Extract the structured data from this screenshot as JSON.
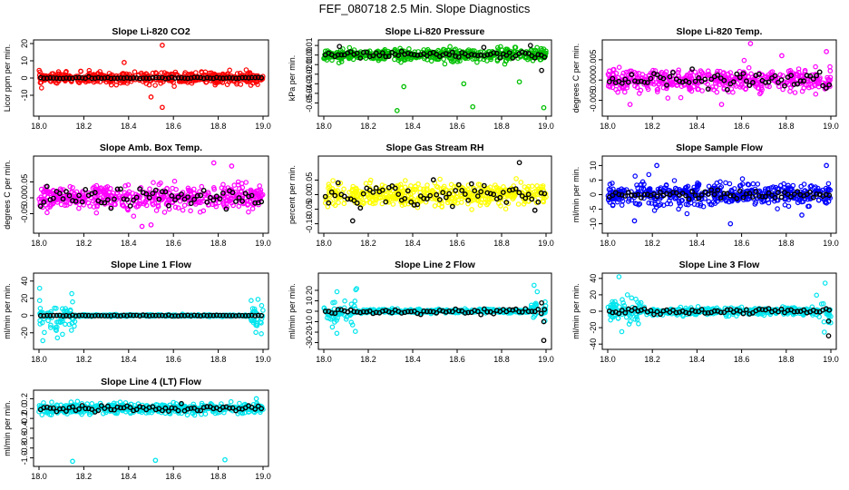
{
  "title": "FEF_080718  2.5 Min. Slope Diagnostics",
  "colors": {
    "red": "#ff0000",
    "green": "#00c000",
    "magenta": "#ff00ff",
    "yellow": "#ffff00",
    "blue": "#0000ff",
    "cyan": "#00e5ee",
    "black": "#000000"
  },
  "chart_data": [
    {
      "type": "scatter",
      "title": "Slope Li-820 CO2",
      "ylabel": "Licor ppm per min.",
      "xlim": [
        18.0,
        19.0
      ],
      "ylim": [
        -20,
        20
      ],
      "xticks": [
        "18.0",
        "18.2",
        "18.4",
        "18.6",
        "18.8",
        "19.0"
      ],
      "yticks": [
        "-10",
        "0",
        "10",
        "20"
      ],
      "series": [
        {
          "name": "all",
          "color": "red",
          "spread": 3,
          "outliers": [
            [
              18.55,
              19
            ],
            [
              18.55,
              -17
            ],
            [
              18.5,
              -11
            ],
            [
              18.38,
              9
            ]
          ]
        },
        {
          "name": "selected",
          "color": "black",
          "spread": 0.4
        }
      ]
    },
    {
      "type": "scatter",
      "title": "Slope Li-820 Pressure",
      "ylabel": "kPa per min.",
      "xlim": [
        18.0,
        19.0
      ],
      "ylim": [
        -0.06,
        0.012
      ],
      "xticks": [
        "18.0",
        "18.2",
        "18.4",
        "18.6",
        "18.8",
        "19.0"
      ],
      "yticks": [
        "-0.05",
        "-0.04",
        "-0.03",
        "-0.02",
        "-0.01",
        "0.00",
        "0.01"
      ],
      "series": [
        {
          "name": "all",
          "color": "green",
          "spread": 0.006,
          "outliers": [
            [
              18.33,
              -0.058
            ],
            [
              18.67,
              -0.054
            ],
            [
              18.99,
              -0.055
            ],
            [
              18.36,
              -0.033
            ],
            [
              18.63,
              -0.03
            ],
            [
              18.88,
              -0.028
            ]
          ]
        },
        {
          "name": "selected",
          "color": "black",
          "spread": 0.003,
          "outliers": [
            [
              18.07,
              0.009
            ],
            [
              18.72,
              0.008
            ],
            [
              18.93,
              0.01
            ],
            [
              18.98,
              -0.016
            ]
          ]
        }
      ]
    },
    {
      "type": "scatter",
      "title": "Slope Li-820 Temp.",
      "ylabel": "degrees C per min.",
      "xlim": [
        18.0,
        19.0
      ],
      "ylim": [
        -0.008,
        0.009
      ],
      "xticks": [
        "18.0",
        "18.2",
        "18.4",
        "18.6",
        "18.8",
        "19.0"
      ],
      "yticks": [
        "-0.005",
        "0.000",
        "0.005"
      ],
      "series": [
        {
          "name": "all",
          "color": "magenta",
          "spread": 0.0025,
          "outliers": [
            [
              18.64,
              0.009
            ],
            [
              18.98,
              0.007
            ],
            [
              18.1,
              -0.006
            ],
            [
              18.51,
              -0.006
            ],
            [
              18.78,
              0.006
            ]
          ]
        },
        {
          "name": "selected",
          "color": "black",
          "spread": 0.0018
        }
      ]
    },
    {
      "type": "scatter",
      "title": "Slope Amb. Box Temp.",
      "ylabel": "degrees C per min.",
      "xlim": [
        18.0,
        19.0
      ],
      "ylim": [
        -0.1,
        0.12
      ],
      "xticks": [
        "18.0",
        "18.2",
        "18.4",
        "18.6",
        "18.8",
        "19.0"
      ],
      "yticks": [
        "-0.05",
        "0.00",
        "0.05"
      ],
      "series": [
        {
          "name": "all",
          "color": "magenta",
          "spread": 0.035,
          "outliers": [
            [
              18.78,
              0.11
            ],
            [
              18.46,
              -0.09
            ],
            [
              18.5,
              -0.085
            ],
            [
              18.86,
              0.1
            ]
          ]
        },
        {
          "name": "selected",
          "color": "black",
          "spread": 0.025
        }
      ]
    },
    {
      "type": "scatter",
      "title": "Slope Gas Stream RH",
      "ylabel": "percent per min.",
      "xlim": [
        18.0,
        19.0
      ],
      "ylim": [
        -0.12,
        0.12
      ],
      "xticks": [
        "18.0",
        "18.2",
        "18.4",
        "18.6",
        "18.8",
        "19.0"
      ],
      "yticks": [
        "-0.10",
        "-0.05",
        "0.00",
        "0.05"
      ],
      "series": [
        {
          "name": "all",
          "color": "yellow",
          "spread": 0.035
        },
        {
          "name": "selected",
          "color": "black",
          "spread": 0.035,
          "outliers": [
            [
              18.88,
              0.11
            ],
            [
              18.13,
              -0.09
            ]
          ]
        }
      ]
    },
    {
      "type": "scatter",
      "title": "Slope Sample Flow",
      "ylabel": "ml/min per min.",
      "xlim": [
        18.0,
        19.0
      ],
      "ylim": [
        -12,
        12
      ],
      "xticks": [
        "18.0",
        "18.2",
        "18.4",
        "18.6",
        "18.8",
        "19.0"
      ],
      "yticks": [
        "-10",
        "-5",
        "0",
        "5",
        "10"
      ],
      "series": [
        {
          "name": "all",
          "color": "blue",
          "spread": 3.5,
          "outliers": [
            [
              18.22,
              10
            ],
            [
              18.55,
              -10
            ],
            [
              18.12,
              -9
            ],
            [
              18.98,
              10
            ],
            [
              18.87,
              -7
            ]
          ]
        },
        {
          "name": "selected",
          "color": "black",
          "spread": 1.2
        }
      ]
    },
    {
      "type": "scatter",
      "title": "Slope Line 1 Flow",
      "ylabel": "ml/min per min.",
      "xlim": [
        18.0,
        19.0
      ],
      "ylim": [
        -35,
        45
      ],
      "xticks": [
        "18.0",
        "18.2",
        "18.4",
        "18.6",
        "18.8",
        "19.0"
      ],
      "yticks": [
        "-20",
        "0",
        "20",
        "40"
      ],
      "series": [
        {
          "name": "all",
          "color": "cyan",
          "spread": 0.8,
          "edge": {
            "left": [
              18.0,
              18.16
            ],
            "right": [
              18.94,
              19.0
            ],
            "spread": 25
          }
        },
        {
          "name": "selected",
          "color": "black",
          "spread": 0.5
        }
      ]
    },
    {
      "type": "scatter",
      "title": "Slope Line 2 Flow",
      "ylabel": "ml/min per min.",
      "xlim": [
        18.0,
        19.0
      ],
      "ylim": [
        -33,
        33
      ],
      "xticks": [
        "18.0",
        "18.2",
        "18.4",
        "18.6",
        "18.8",
        "19.0"
      ],
      "yticks": [
        "-30",
        "-20",
        "-10",
        "0",
        "10",
        "20"
      ],
      "series": [
        {
          "name": "all",
          "color": "cyan",
          "spread": 1.5,
          "edge": {
            "left": [
              18.0,
              18.15
            ],
            "right": [
              18.93,
              19.0
            ],
            "spread": 20
          }
        },
        {
          "name": "selected",
          "color": "black",
          "spread": 2,
          "outliers": [
            [
              18.99,
              -28
            ],
            [
              18.99,
              -10
            ],
            [
              18.98,
              8
            ]
          ]
        }
      ]
    },
    {
      "type": "scatter",
      "title": "Slope Line 3 Flow",
      "ylabel": "ml/min per min.",
      "xlim": [
        18.0,
        19.0
      ],
      "ylim": [
        -42,
        42
      ],
      "xticks": [
        "18.0",
        "18.2",
        "18.4",
        "18.6",
        "18.8",
        "19.0"
      ],
      "yticks": [
        "-40",
        "-20",
        "0",
        "20",
        "40"
      ],
      "series": [
        {
          "name": "all",
          "color": "cyan",
          "spread": 4,
          "edge": {
            "left": [
              18.0,
              18.15
            ],
            "right": [
              18.93,
              19.0
            ],
            "spread": 25
          }
        },
        {
          "name": "selected",
          "color": "black",
          "spread": 3,
          "outliers": [
            [
              18.99,
              -30
            ],
            [
              18.99,
              -12
            ]
          ]
        }
      ]
    },
    {
      "type": "scatter",
      "title": "Slope Line 4 (LT) Flow",
      "ylabel": "ml/min per min.",
      "xlim": [
        18.0,
        19.0
      ],
      "ylim": [
        -1.1,
        0.3
      ],
      "xticks": [
        "18.0",
        "18.2",
        "18.4",
        "18.6",
        "18.8",
        "19.0"
      ],
      "yticks": [
        "-1.0",
        "-0.8",
        "-0.6",
        "-0.4",
        "-0.2",
        "0.0",
        "0.2"
      ],
      "series": [
        {
          "name": "all",
          "color": "cyan",
          "spread": 0.1,
          "outliers": [
            [
              18.15,
              -1.07
            ],
            [
              18.52,
              -1.05
            ],
            [
              18.83,
              -1.04
            ],
            [
              18.97,
              0.2
            ]
          ]
        },
        {
          "name": "selected",
          "color": "black",
          "spread": 0.06
        }
      ]
    }
  ]
}
